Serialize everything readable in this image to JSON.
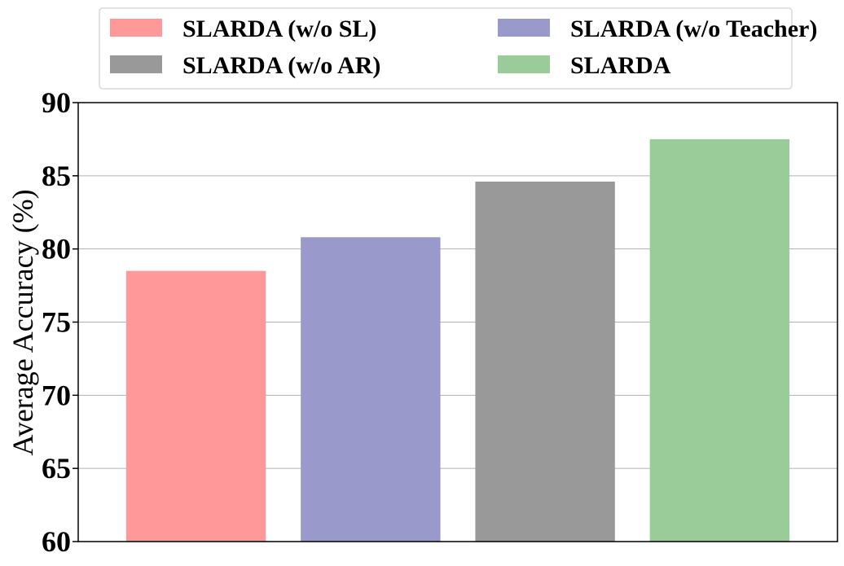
{
  "chart_data": {
    "type": "bar",
    "title": "",
    "xlabel": "",
    "ylabel": "Average Accuracy (%)",
    "ylim": [
      60,
      90
    ],
    "yticks": [
      60,
      65,
      70,
      75,
      80,
      85,
      90
    ],
    "grid": "horizontal",
    "legend_placement": "top",
    "categories": [
      "SLARDA (w/o SL)",
      "SLARDA (w/o Teacher)",
      "SLARDA (w/o AR)",
      "SLARDA"
    ],
    "values": [
      78.5,
      80.8,
      84.6,
      87.5
    ],
    "colors": [
      "#ff9999",
      "#9999cc",
      "#999999",
      "#99cc99"
    ],
    "legend_order": [
      0,
      2,
      1,
      3
    ]
  }
}
